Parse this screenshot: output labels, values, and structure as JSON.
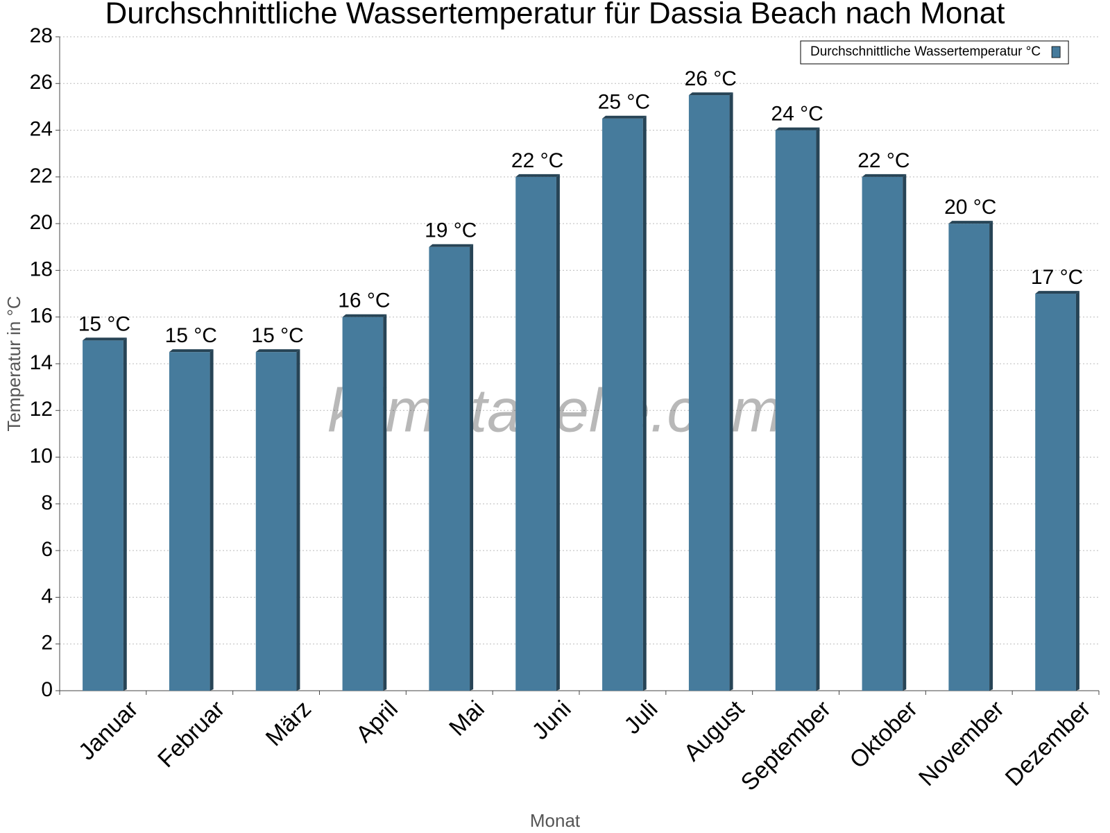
{
  "chart_data": {
    "type": "bar",
    "title": "Durchschnittliche Wassertemperatur für Dassia Beach nach Monat",
    "x_label": "Monat",
    "y_label": "Temperatur in °C",
    "watermark": "klimatabelle.com",
    "categories": [
      "Januar",
      "Februar",
      "März",
      "April",
      "Mai",
      "Juni",
      "Juli",
      "August",
      "September",
      "Oktober",
      "November",
      "Dezember"
    ],
    "series": [
      {
        "name": "Durchschnittliche Wassertemperatur °C",
        "color": "#467b9c",
        "values": [
          15,
          14.5,
          14.5,
          16,
          19,
          22,
          24.5,
          25.5,
          24,
          22,
          20,
          17
        ],
        "value_labels": [
          "15 °C",
          "15 °C",
          "15 °C",
          "16 °C",
          "19 °C",
          "22 °C",
          "25 °C",
          "26 °C",
          "24 °C",
          "22 °C",
          "20 °C",
          "17 °C"
        ]
      }
    ],
    "ylim": [
      0,
      28
    ],
    "yticks": [
      0,
      2,
      4,
      6,
      8,
      10,
      12,
      14,
      16,
      18,
      20,
      22,
      24,
      26,
      28
    ],
    "grid": true,
    "legend": "upper right"
  }
}
